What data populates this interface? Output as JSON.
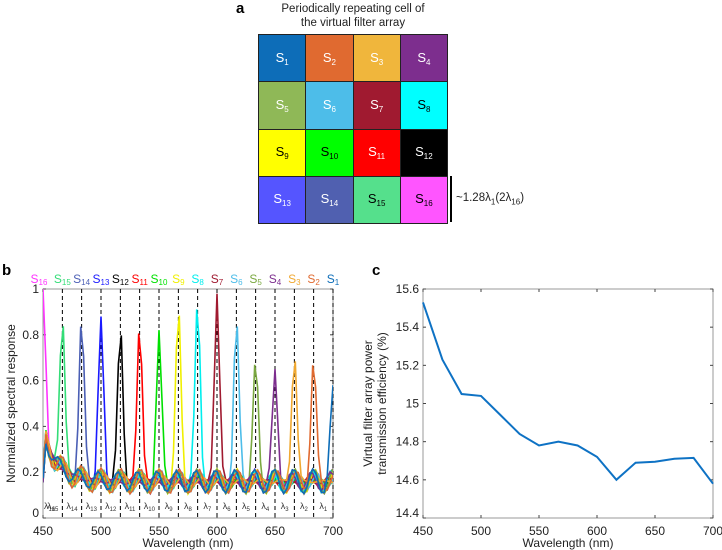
{
  "panel_a": {
    "letter": "a",
    "title_line1": "Periodically repeating cell of",
    "title_line2": "the virtual filter array",
    "cells": [
      {
        "s": "S",
        "sub": "1",
        "color": "#0d6db8",
        "text": "#ffffff"
      },
      {
        "s": "S",
        "sub": "2",
        "color": "#e06a30",
        "text": "#ffffff"
      },
      {
        "s": "S",
        "sub": "3",
        "color": "#f0b63c",
        "text": "#ffffff"
      },
      {
        "s": "S",
        "sub": "4",
        "color": "#7d2e8e",
        "text": "#ffffff"
      },
      {
        "s": "S",
        "sub": "5",
        "color": "#8fb857",
        "text": "#ffffff"
      },
      {
        "s": "S",
        "sub": "6",
        "color": "#4dbde9",
        "text": "#ffffff"
      },
      {
        "s": "S",
        "sub": "7",
        "color": "#a01a30",
        "text": "#ffffff"
      },
      {
        "s": "S",
        "sub": "8",
        "color": "#00ffff",
        "text": "#000000"
      },
      {
        "s": "S",
        "sub": "9",
        "color": "#ffff00",
        "text": "#000000"
      },
      {
        "s": "S",
        "sub": "10",
        "color": "#00ff00",
        "text": "#000000"
      },
      {
        "s": "S",
        "sub": "11",
        "color": "#ff0000",
        "text": "#ffffff"
      },
      {
        "s": "S",
        "sub": "12",
        "color": "#000000",
        "text": "#ffffff"
      },
      {
        "s": "S",
        "sub": "13",
        "color": "#5555ff",
        "text": "#ffffff"
      },
      {
        "s": "S",
        "sub": "14",
        "color": "#5060b0",
        "text": "#ffffff"
      },
      {
        "s": "S",
        "sub": "15",
        "color": "#55e08c",
        "text": "#000000"
      },
      {
        "s": "S",
        "sub": "16",
        "color": "#ff55ff",
        "text": "#000000"
      }
    ],
    "scale_label_pre": "~1.28λ",
    "scale_label_sub1": "1",
    "scale_label_mid": "(2λ",
    "scale_label_sub2": "16",
    "scale_label_post": ")"
  },
  "chart_data": [
    {
      "panel": "b",
      "type": "line",
      "xlabel": "Wavelength (nm)",
      "ylabel": "Normalized spectral response",
      "xlim": [
        450,
        700
      ],
      "ylim": [
        0,
        1
      ],
      "xticks": [
        "450",
        "500",
        "550",
        "600",
        "650",
        "700"
      ],
      "yticks": [
        "0",
        "0.2",
        "0.4",
        "0.6",
        "0.8",
        "1"
      ],
      "grid": false,
      "lambda_labels": [
        "16",
        "15",
        "14",
        "13",
        "12",
        "11",
        "10",
        "9",
        "8",
        "7",
        "6",
        "5",
        "4",
        "3",
        "2",
        "1"
      ],
      "series": [
        {
          "name": "S",
          "sub": "16",
          "peak_wavelength": 450.0,
          "peak_value": 1.0,
          "color": "#ff33ff"
        },
        {
          "name": "S",
          "sub": "15",
          "peak_wavelength": 466.7,
          "peak_value": 0.88,
          "color": "#33dd77"
        },
        {
          "name": "S",
          "sub": "14",
          "peak_wavelength": 483.3,
          "peak_value": 0.88,
          "color": "#4b5fb5"
        },
        {
          "name": "S",
          "sub": "13",
          "peak_wavelength": 500.0,
          "peak_value": 0.88,
          "color": "#1a1aff"
        },
        {
          "name": "S",
          "sub": "12",
          "peak_wavelength": 516.7,
          "peak_value": 0.84,
          "color": "#000000"
        },
        {
          "name": "S",
          "sub": "11",
          "peak_wavelength": 533.3,
          "peak_value": 0.85,
          "color": "#ff0000"
        },
        {
          "name": "S",
          "sub": "10",
          "peak_wavelength": 550.0,
          "peak_value": 0.82,
          "color": "#00e000"
        },
        {
          "name": "S",
          "sub": "9",
          "peak_wavelength": 566.7,
          "peak_value": 0.93,
          "color": "#f0f000"
        },
        {
          "name": "S",
          "sub": "8",
          "peak_wavelength": 583.3,
          "peak_value": 0.96,
          "color": "#00eeee"
        },
        {
          "name": "S",
          "sub": "7",
          "peak_wavelength": 600.0,
          "peak_value": 0.98,
          "color": "#a01a30"
        },
        {
          "name": "S",
          "sub": "6",
          "peak_wavelength": 616.7,
          "peak_value": 0.88,
          "color": "#4dbde9"
        },
        {
          "name": "S",
          "sub": "5",
          "peak_wavelength": 633.3,
          "peak_value": 0.7,
          "color": "#7aa840"
        },
        {
          "name": "S",
          "sub": "4",
          "peak_wavelength": 650.0,
          "peak_value": 0.65,
          "color": "#7d2e8e"
        },
        {
          "name": "S",
          "sub": "3",
          "peak_wavelength": 666.7,
          "peak_value": 0.72,
          "color": "#f0a830"
        },
        {
          "name": "S",
          "sub": "2",
          "peak_wavelength": 683.3,
          "peak_value": 0.7,
          "color": "#e06a30"
        },
        {
          "name": "S",
          "sub": "1",
          "peak_wavelength": 700.0,
          "peak_value": 0.58,
          "color": "#0d6db8"
        }
      ]
    },
    {
      "panel": "c",
      "type": "line",
      "xlabel": "Wavelength (nm)",
      "ylabel_line1": "Virtual filter array power",
      "ylabel_line2": "transmission efficiency (%)",
      "xlim": [
        450,
        700
      ],
      "ylim": [
        14.4,
        15.6
      ],
      "xticks": [
        "450",
        "500",
        "550",
        "600",
        "650",
        "700"
      ],
      "yticks": [
        "14.4",
        "14.6",
        "14.8",
        "15",
        "15.2",
        "15.4",
        "15.6"
      ],
      "grid": false,
      "color": "#0e72c4",
      "x": [
        450,
        466.7,
        483.3,
        500,
        516.7,
        533.3,
        550,
        566.7,
        583.3,
        600,
        616.7,
        633.3,
        650,
        666.7,
        683.3,
        700
      ],
      "y": [
        15.53,
        15.23,
        15.05,
        15.04,
        14.94,
        14.84,
        14.78,
        14.8,
        14.78,
        14.72,
        14.6,
        14.69,
        14.695,
        14.71,
        14.715,
        14.58
      ]
    }
  ],
  "letters": {
    "b": "b",
    "c": "c"
  }
}
